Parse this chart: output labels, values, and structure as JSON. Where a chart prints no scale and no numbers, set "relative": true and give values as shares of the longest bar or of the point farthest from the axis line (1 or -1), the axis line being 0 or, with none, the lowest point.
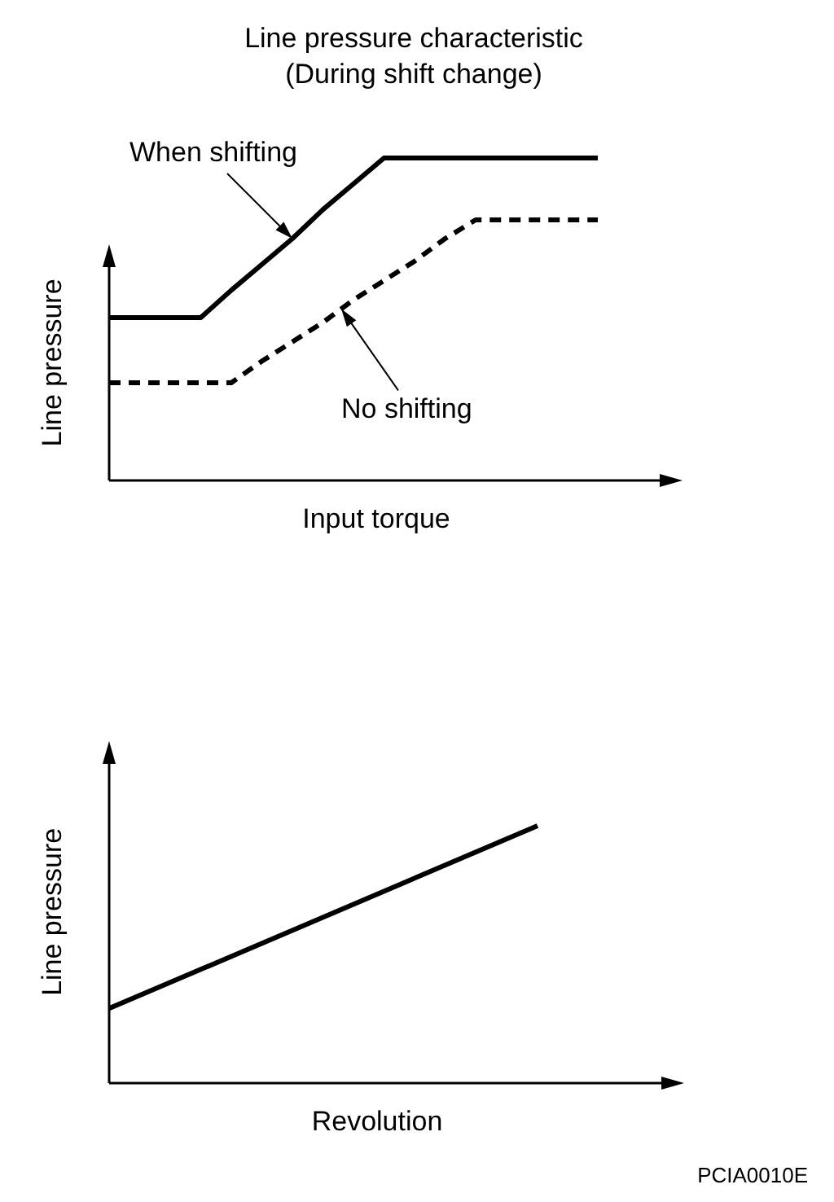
{
  "chart_data": [
    {
      "type": "line",
      "title": "Line pressure characteristic",
      "subtitle": "(During shift change)",
      "xlabel": "Input torque",
      "ylabel": "Line pressure",
      "relative": true,
      "tick_labels": false,
      "marker": "none",
      "categories": [
        null,
        null,
        null,
        null,
        null,
        null,
        null,
        null,
        null,
        null,
        null,
        null,
        null,
        null,
        null,
        null,
        null
      ],
      "series": [
        {
          "name": "When shifting",
          "color": "#000000",
          "line_style": "solid",
          "values": [
            0.505,
            0.505,
            0.505,
            0.505,
            0.59,
            0.67,
            0.75,
            0.84,
            0.92,
            1,
            1,
            1,
            1,
            1,
            1,
            1,
            1
          ]
        },
        {
          "name": "No shifting",
          "color": "#000000",
          "line_style": "dashed",
          "values": [
            0.303,
            0.303,
            0.303,
            0.303,
            0.303,
            0.37,
            0.43,
            0.49,
            0.56,
            0.62,
            0.68,
            0.75,
            0.808,
            0.808,
            0.808,
            0.808,
            0.808
          ]
        }
      ]
    },
    {
      "type": "line",
      "xlabel": "Revolution",
      "ylabel": "Line pressure",
      "relative": true,
      "tick_labels": false,
      "marker": "none",
      "categories": [
        null,
        null
      ],
      "series": [
        {
          "color": "#000000",
          "line_style": "solid",
          "values": [
            0.29,
            1
          ]
        }
      ],
      "annotations": [
        "PCIA0010E"
      ]
    }
  ]
}
